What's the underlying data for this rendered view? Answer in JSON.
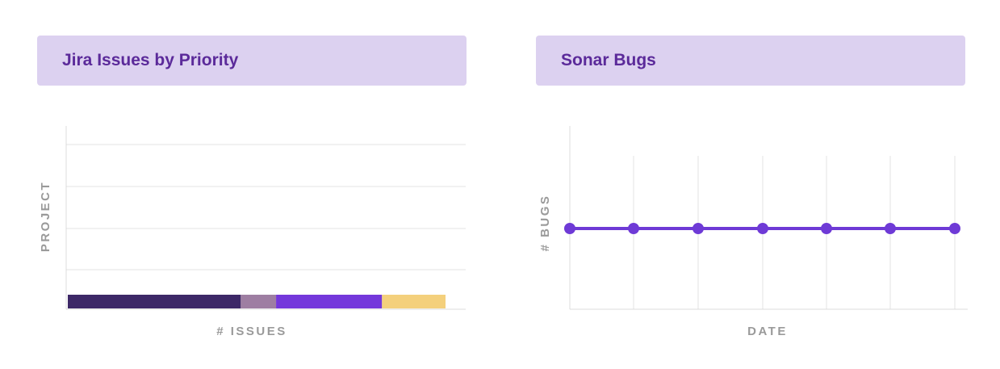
{
  "panels": {
    "left_title": "Jira Issues by Priority",
    "right_title": "Sonar Bugs"
  },
  "chart_data": [
    {
      "type": "bar",
      "orientation": "horizontal",
      "stacked": true,
      "xlabel": "# ISSUES",
      "ylabel": "PROJECT",
      "categories": [
        ""
      ],
      "series": [
        {
          "values": [
            49
          ],
          "color": "#3d2867"
        },
        {
          "values": [
            10
          ],
          "color": "#9e7ea2"
        },
        {
          "values": [
            30
          ],
          "color": "#7438db"
        },
        {
          "values": [
            18
          ],
          "color": "#f4d07c"
        }
      ],
      "grid": true,
      "legend": "none"
    },
    {
      "type": "line",
      "xlabel": "DATE",
      "ylabel": "# BUGS",
      "x": [
        "",
        "",
        "",
        "",
        "",
        "",
        ""
      ],
      "series": [
        {
          "values": [
            0,
            0,
            0,
            0,
            0,
            0,
            0
          ],
          "color": "#6e3ad6"
        }
      ],
      "grid": true,
      "legend": "none"
    }
  ]
}
